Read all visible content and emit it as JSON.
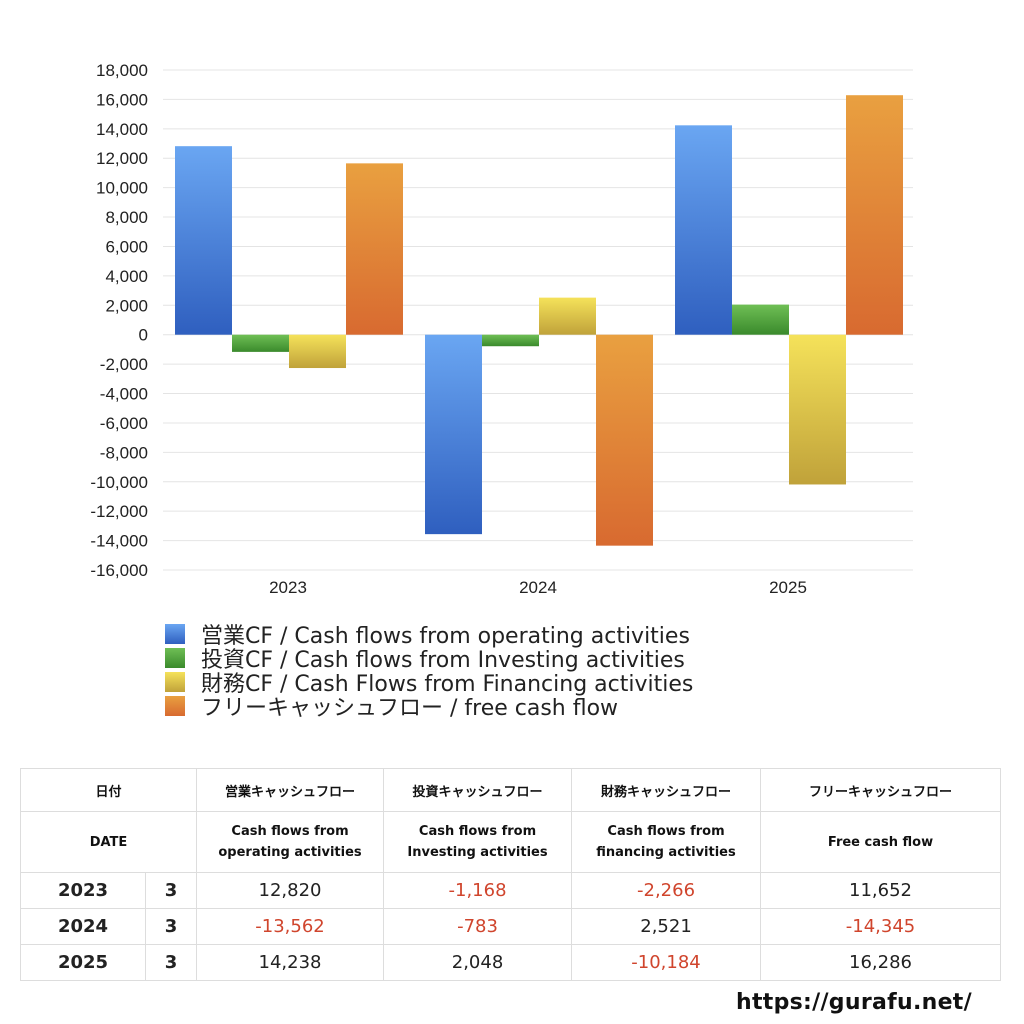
{
  "chart_data": {
    "type": "bar",
    "categories": [
      "2023",
      "2024",
      "2025"
    ],
    "series": [
      {
        "name": "営業CF / Cash flows from operating activities",
        "values": [
          12820,
          -13562,
          14238
        ],
        "color": "#3f7fd6"
      },
      {
        "name": "投資CF / Cash flows from Investing activities",
        "values": [
          -1168,
          -783,
          2048
        ],
        "color": "#4fa33c"
      },
      {
        "name": "財務CF / Cash Flows from Financing activities",
        "values": [
          -2266,
          2521,
          -10184
        ],
        "color": "#e3c84a"
      },
      {
        "name": "フリーキャッシュフロー / free cash flow",
        "values": [
          11652,
          -14345,
          16286
        ],
        "color": "#e0823a"
      }
    ],
    "ylim": [
      -16000,
      18000
    ],
    "yticks": [
      "18,000",
      "16,000",
      "14,000",
      "12,000",
      "10,000",
      "8,000",
      "6,000",
      "4,000",
      "2,000",
      "0",
      "-2,000",
      "-4,000",
      "-6,000",
      "-8,000",
      "-10,000",
      "-12,000",
      "-14,000",
      "-16,000"
    ],
    "legend_position": "bottom",
    "grid": true
  },
  "table": {
    "header_jp": [
      "日付",
      "営業キャッシュフロー",
      "投資キャッシュフロー",
      "財務キャッシュフロー",
      "フリーキャッシュフロー"
    ],
    "header_en": [
      "DATE",
      "Cash flows from\noperating activities",
      "Cash flows from\nInvesting activities",
      "Cash flows from\nfinancing activities",
      "Free cash flow"
    ],
    "rows": [
      {
        "year": "2023",
        "month": "3",
        "op": "12,820",
        "inv": "-1,168",
        "fin": "-2,266",
        "fcf": "11,652"
      },
      {
        "year": "2024",
        "month": "3",
        "op": "-13,562",
        "inv": "-783",
        "fin": "2,521",
        "fcf": "-14,345"
      },
      {
        "year": "2025",
        "month": "3",
        "op": "14,238",
        "inv": "2,048",
        "fin": "-10,184",
        "fcf": "16,286"
      }
    ]
  },
  "footer": {
    "url": "https://gurafu.net/"
  }
}
